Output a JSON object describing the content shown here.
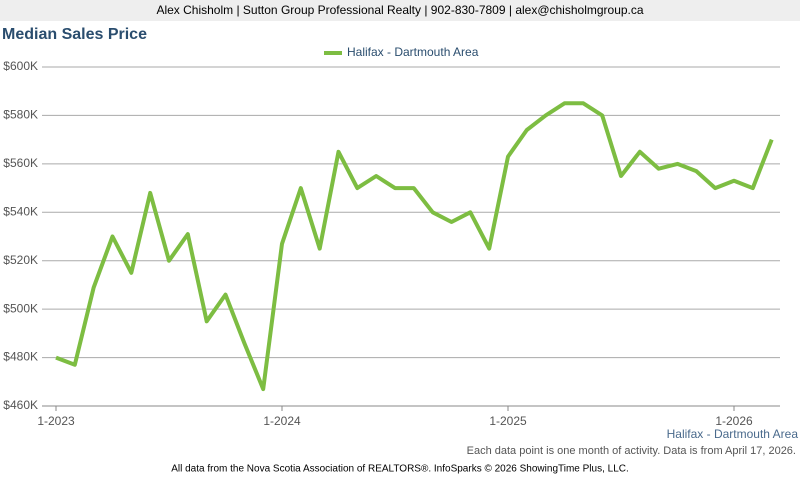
{
  "header": "Alex Chisholm | Sutton Group Professional Realty | 902-830-7809 | alex@chisholmgroup.ca",
  "chart_data": {
    "type": "line",
    "title": "Median Sales Price",
    "categories": [
      "1-2023",
      null,
      null,
      null,
      null,
      null,
      null,
      null,
      null,
      null,
      null,
      null,
      "1-2024",
      null,
      null,
      null,
      null,
      null,
      null,
      null,
      null,
      null,
      null,
      null,
      "1-2025",
      null,
      null,
      null,
      null,
      null,
      null,
      null,
      null,
      null,
      null,
      null,
      "1-2026",
      null,
      null
    ],
    "series": [
      {
        "name": "Halifax - Dartmouth Area",
        "color": "#7dbd42",
        "values": [
          480000,
          477000,
          509000,
          530000,
          515000,
          548000,
          520000,
          531000,
          495000,
          506000,
          486000,
          467000,
          527000,
          550000,
          525000,
          565000,
          550000,
          555000,
          550000,
          550000,
          540000,
          536000,
          540000,
          525000,
          563000,
          574000,
          580000,
          585000,
          585000,
          580000,
          555000,
          565000,
          558000,
          560000,
          557000,
          550000,
          553000,
          550000,
          570000
        ]
      }
    ],
    "ylim": [
      460000,
      600000
    ],
    "yticks": [
      {
        "value": 460000,
        "label": "$460K"
      },
      {
        "value": 480000,
        "label": "$480K"
      },
      {
        "value": 500000,
        "label": "$500K"
      },
      {
        "value": 520000,
        "label": "$520K"
      },
      {
        "value": 540000,
        "label": "$540K"
      },
      {
        "value": 560000,
        "label": "$560K"
      },
      {
        "value": 580000,
        "label": "$580K"
      },
      {
        "value": 600000,
        "label": "$600K"
      }
    ],
    "grid": true,
    "area_label": "Halifax - Dartmouth Area",
    "note": "Each data point is one month of activity. Data is from April 17, 2026."
  },
  "footer": "All data from the Nova Scotia Association of REALTORS®. InfoSparks © 2026 ShowingTime Plus, LLC."
}
